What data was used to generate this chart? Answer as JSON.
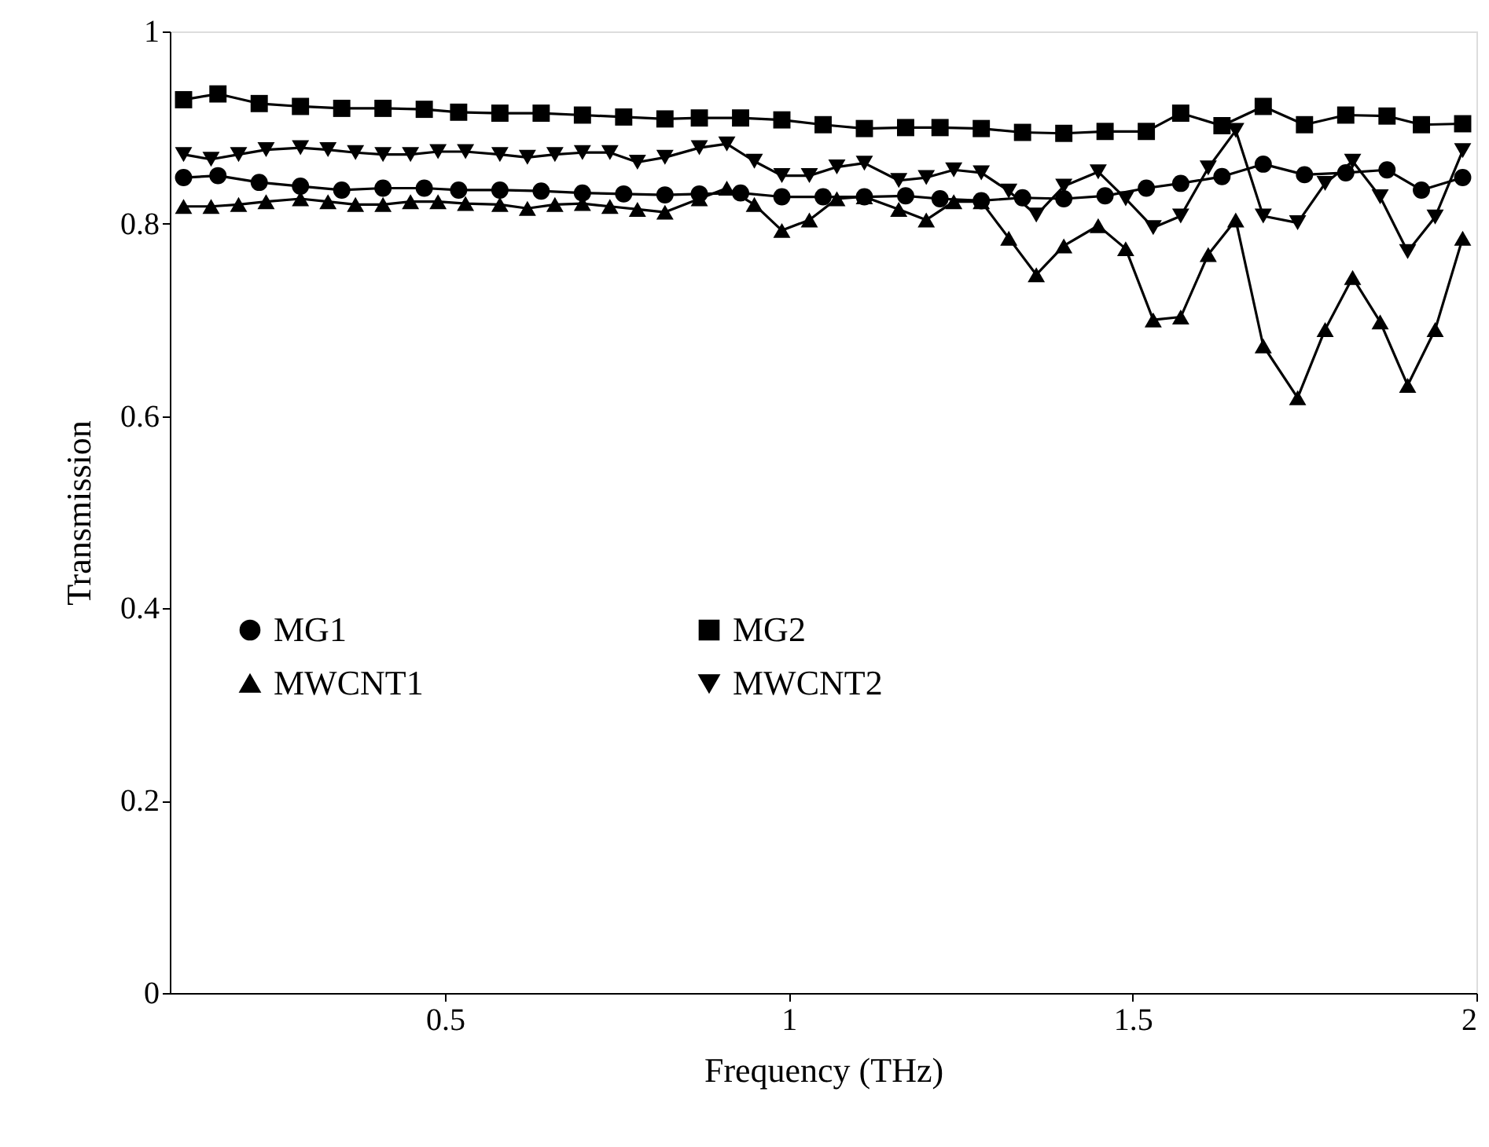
{
  "chart_data": {
    "type": "line",
    "xlabel": "Frequency (THz)",
    "ylabel": "Transmission",
    "xlim": [
      0.1,
      2
    ],
    "xticks": [
      0.5,
      1,
      1.5,
      2
    ],
    "ylim": [
      0,
      1
    ],
    "yticks": [
      0,
      0.2,
      0.4,
      0.6,
      0.8,
      1
    ],
    "legend": "left",
    "line_style": "solid",
    "series": [
      {
        "name": "MG1",
        "color": "#000000",
        "marker": "circle",
        "x": [
          0.12,
          0.17,
          0.23,
          0.29,
          0.35,
          0.41,
          0.47,
          0.52,
          0.58,
          0.64,
          0.7,
          0.76,
          0.82,
          0.87,
          0.93,
          0.99,
          1.05,
          1.11,
          1.17,
          1.22,
          1.28,
          1.34,
          1.4,
          1.46,
          1.52,
          1.57,
          1.63,
          1.69,
          1.75,
          1.81,
          1.87,
          1.92,
          1.98
        ],
        "values": [
          0.848,
          0.85,
          0.843,
          0.839,
          0.835,
          0.837,
          0.837,
          0.835,
          0.835,
          0.834,
          0.832,
          0.831,
          0.83,
          0.831,
          0.832,
          0.828,
          0.828,
          0.828,
          0.829,
          0.826,
          0.824,
          0.827,
          0.826,
          0.829,
          0.837,
          0.842,
          0.849,
          0.862,
          0.851,
          0.853,
          0.856,
          0.835,
          0.848
        ]
      },
      {
        "name": "MG2",
        "color": "#000000",
        "marker": "square",
        "x": [
          0.12,
          0.17,
          0.23,
          0.29,
          0.35,
          0.41,
          0.47,
          0.52,
          0.58,
          0.64,
          0.7,
          0.76,
          0.82,
          0.87,
          0.93,
          0.99,
          1.05,
          1.11,
          1.17,
          1.22,
          1.28,
          1.34,
          1.4,
          1.46,
          1.52,
          1.57,
          1.63,
          1.69,
          1.75,
          1.81,
          1.87,
          1.92,
          1.98
        ],
        "values": [
          0.929,
          0.935,
          0.925,
          0.922,
          0.92,
          0.92,
          0.919,
          0.916,
          0.915,
          0.915,
          0.913,
          0.911,
          0.909,
          0.91,
          0.91,
          0.908,
          0.903,
          0.899,
          0.9,
          0.9,
          0.899,
          0.895,
          0.894,
          0.896,
          0.896,
          0.915,
          0.902,
          0.922,
          0.903,
          0.913,
          0.912,
          0.903,
          0.904
        ]
      },
      {
        "name": "MWCNT1",
        "color": "#000000",
        "marker": "triangle",
        "x": [
          0.12,
          0.16,
          0.2,
          0.24,
          0.29,
          0.33,
          0.37,
          0.41,
          0.45,
          0.49,
          0.53,
          0.58,
          0.62,
          0.66,
          0.7,
          0.74,
          0.78,
          0.82,
          0.87,
          0.91,
          0.95,
          0.99,
          1.03,
          1.07,
          1.11,
          1.16,
          1.2,
          1.24,
          1.28,
          1.32,
          1.36,
          1.4,
          1.45,
          1.49,
          1.53,
          1.57,
          1.61,
          1.65,
          1.69,
          1.74,
          1.78,
          1.82,
          1.86,
          1.9,
          1.94,
          1.98
        ],
        "values": [
          0.818,
          0.818,
          0.82,
          0.823,
          0.826,
          0.823,
          0.82,
          0.82,
          0.823,
          0.823,
          0.821,
          0.82,
          0.816,
          0.82,
          0.821,
          0.818,
          0.815,
          0.812,
          0.826,
          0.837,
          0.82,
          0.793,
          0.804,
          0.826,
          0.828,
          0.815,
          0.804,
          0.823,
          0.823,
          0.785,
          0.747,
          0.777,
          0.798,
          0.774,
          0.7,
          0.703,
          0.768,
          0.804,
          0.673,
          0.619,
          0.69,
          0.744,
          0.698,
          0.632,
          0.69,
          0.785
        ]
      },
      {
        "name": "MWCNT2",
        "color": "#000000",
        "marker": "triangle-down",
        "x": [
          0.12,
          0.16,
          0.2,
          0.24,
          0.29,
          0.33,
          0.37,
          0.41,
          0.45,
          0.49,
          0.53,
          0.58,
          0.62,
          0.66,
          0.7,
          0.74,
          0.78,
          0.82,
          0.87,
          0.91,
          0.95,
          0.99,
          1.03,
          1.07,
          1.11,
          1.16,
          1.2,
          1.24,
          1.28,
          1.32,
          1.36,
          1.4,
          1.45,
          1.49,
          1.53,
          1.57,
          1.61,
          1.65,
          1.69,
          1.74,
          1.78,
          1.82,
          1.86,
          1.9,
          1.94,
          1.98
        ],
        "values": [
          0.872,
          0.867,
          0.872,
          0.877,
          0.879,
          0.877,
          0.874,
          0.872,
          0.872,
          0.875,
          0.875,
          0.872,
          0.869,
          0.872,
          0.874,
          0.874,
          0.864,
          0.869,
          0.879,
          0.883,
          0.865,
          0.85,
          0.85,
          0.859,
          0.863,
          0.845,
          0.848,
          0.856,
          0.853,
          0.834,
          0.809,
          0.839,
          0.854,
          0.826,
          0.796,
          0.808,
          0.858,
          0.897,
          0.808,
          0.801,
          0.842,
          0.865,
          0.828,
          0.771,
          0.807,
          0.876
        ]
      }
    ]
  }
}
